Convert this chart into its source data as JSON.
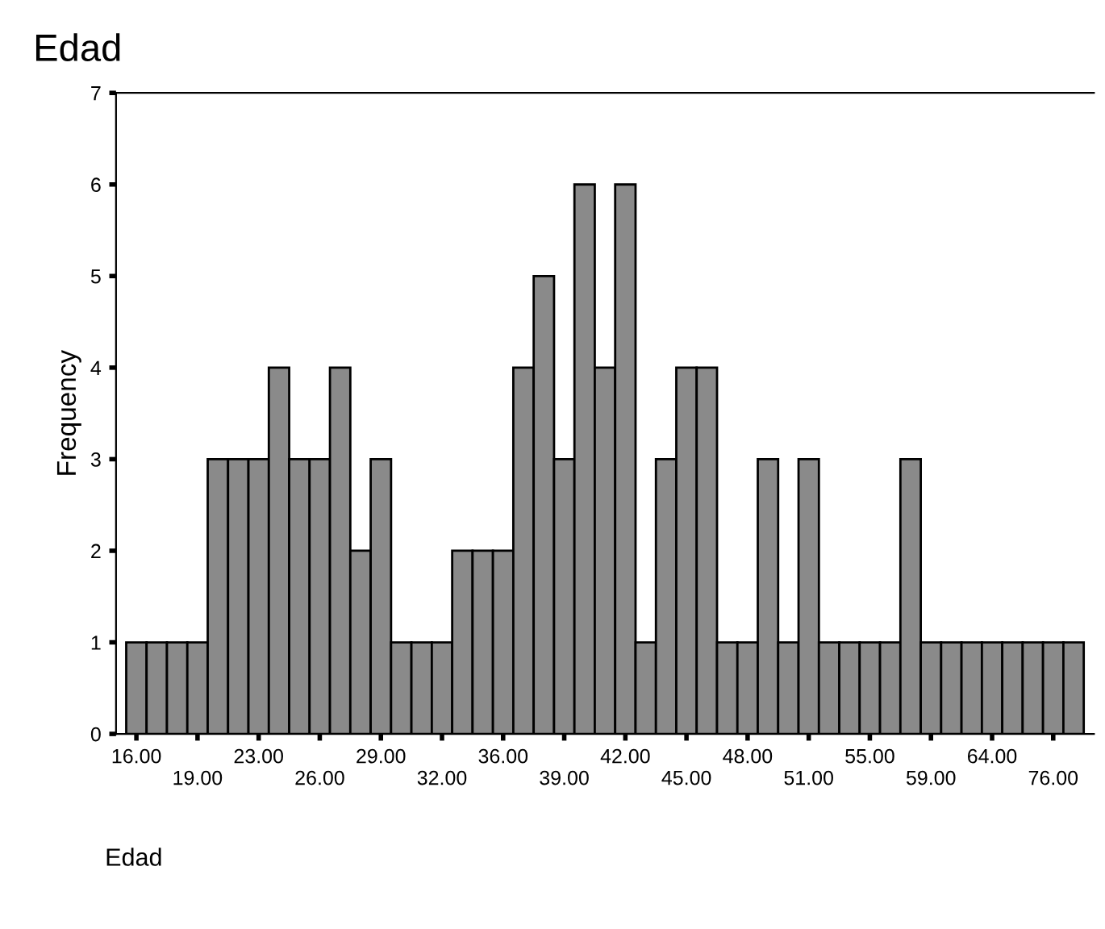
{
  "chart_data": {
    "type": "bar",
    "title": "Edad",
    "xlabel": "Edad",
    "ylabel": "Frequency",
    "categories": [
      "16.00",
      null,
      null,
      "19.00",
      null,
      null,
      "23.00",
      null,
      null,
      "26.00",
      null,
      null,
      "29.00",
      null,
      null,
      "32.00",
      null,
      null,
      "36.00",
      null,
      null,
      "39.00",
      null,
      null,
      "42.00",
      null,
      null,
      "45.00",
      null,
      null,
      "48.00",
      null,
      null,
      "51.00",
      null,
      null,
      "55.00",
      null,
      null,
      "59.00",
      null,
      null,
      "64.00",
      null,
      null,
      "76.00",
      null
    ],
    "values": [
      1,
      1,
      1,
      1,
      3,
      3,
      3,
      4,
      3,
      3,
      4,
      2,
      3,
      1,
      1,
      1,
      2,
      2,
      2,
      4,
      5,
      3,
      6,
      4,
      6,
      1,
      3,
      4,
      4,
      1,
      1,
      3,
      1,
      3,
      1,
      1,
      1,
      1,
      3,
      1,
      1,
      1,
      1,
      1,
      1,
      1,
      1
    ],
    "color": "#8a8a8a",
    "ylim": [
      0,
      7
    ],
    "yticks": [
      0,
      1,
      2,
      3,
      4,
      5,
      6,
      7
    ],
    "grid": false,
    "legend": false
  }
}
